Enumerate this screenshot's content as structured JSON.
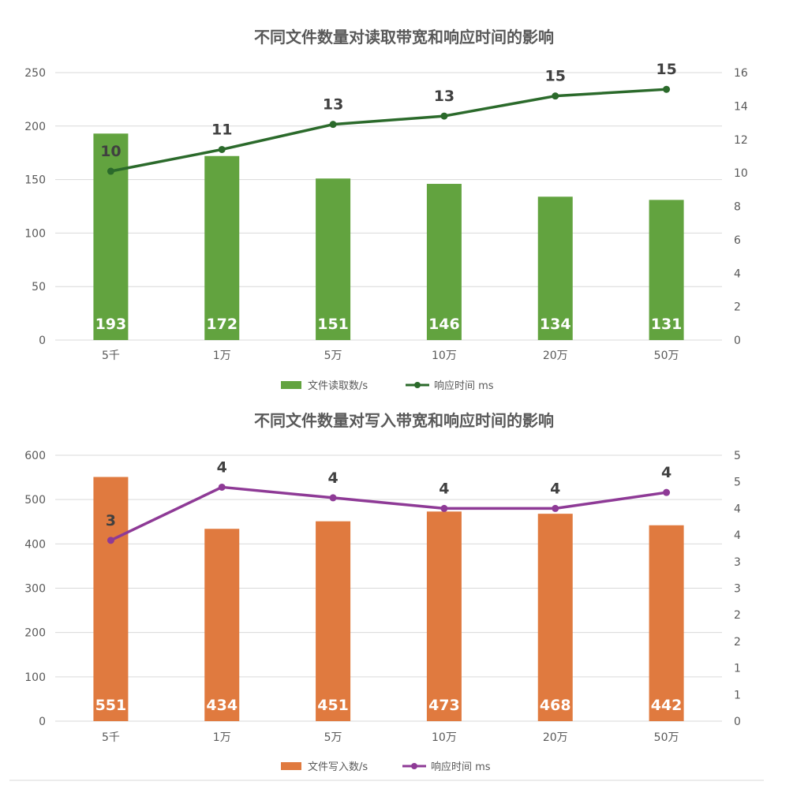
{
  "chart_data": [
    {
      "type": "bar",
      "title": "不同文件数量对读取带宽和响应时间的影响",
      "categories": [
        "5千",
        "1万",
        "5万",
        "10万",
        "20万",
        "50万"
      ],
      "y_left": {
        "ticks": [
          "0",
          "50",
          "100",
          "150",
          "200",
          "250"
        ],
        "ylim": [
          0,
          250
        ]
      },
      "y_right": {
        "ticks": [
          "0",
          "2",
          "4",
          "6",
          "8",
          "10",
          "12",
          "14",
          "16"
        ],
        "ylim": [
          0,
          16
        ]
      },
      "series": [
        {
          "name": "文件读取数/s",
          "type": "bar",
          "axis": "left",
          "color": "#62a33f",
          "values": [
            193,
            172,
            151,
            146,
            134,
            131
          ],
          "labels": [
            "193",
            "172",
            "151",
            "146",
            "134",
            "131"
          ]
        },
        {
          "name": "响应时间 ms",
          "type": "line",
          "axis": "right",
          "color": "#2b6a2b",
          "values": [
            10.1,
            11.4,
            12.9,
            13.4,
            14.6,
            15.0
          ],
          "labels": [
            "10",
            "11",
            "13",
            "13",
            "15",
            "15"
          ]
        }
      ],
      "grid": true,
      "legend": "bottom"
    },
    {
      "type": "bar",
      "title": "不同文件数量对写入带宽和响应时间的影响",
      "categories": [
        "5千",
        "1万",
        "5万",
        "10万",
        "20万",
        "50万"
      ],
      "y_left": {
        "ticks": [
          "0",
          "100",
          "200",
          "300",
          "400",
          "500",
          "600"
        ],
        "ylim": [
          0,
          600
        ]
      },
      "y_right": {
        "ticks": [
          "0",
          "1",
          "1",
          "2",
          "2",
          "3",
          "3",
          "4",
          "4",
          "5",
          "5"
        ],
        "ylim": [
          0,
          5
        ]
      },
      "series": [
        {
          "name": "文件写入数/s",
          "type": "bar",
          "axis": "left",
          "color": "#e07a3f",
          "values": [
            551,
            434,
            451,
            473,
            468,
            442
          ],
          "labels": [
            "551",
            "434",
            "451",
            "473",
            "468",
            "442"
          ]
        },
        {
          "name": "响应时间 ms",
          "type": "line",
          "axis": "right",
          "color": "#8e3a96",
          "values": [
            3.4,
            4.4,
            4.2,
            4.0,
            4.0,
            4.3
          ],
          "labels": [
            "3",
            "4",
            "4",
            "4",
            "4",
            "4"
          ]
        }
      ],
      "grid": true,
      "legend": "bottom"
    }
  ]
}
